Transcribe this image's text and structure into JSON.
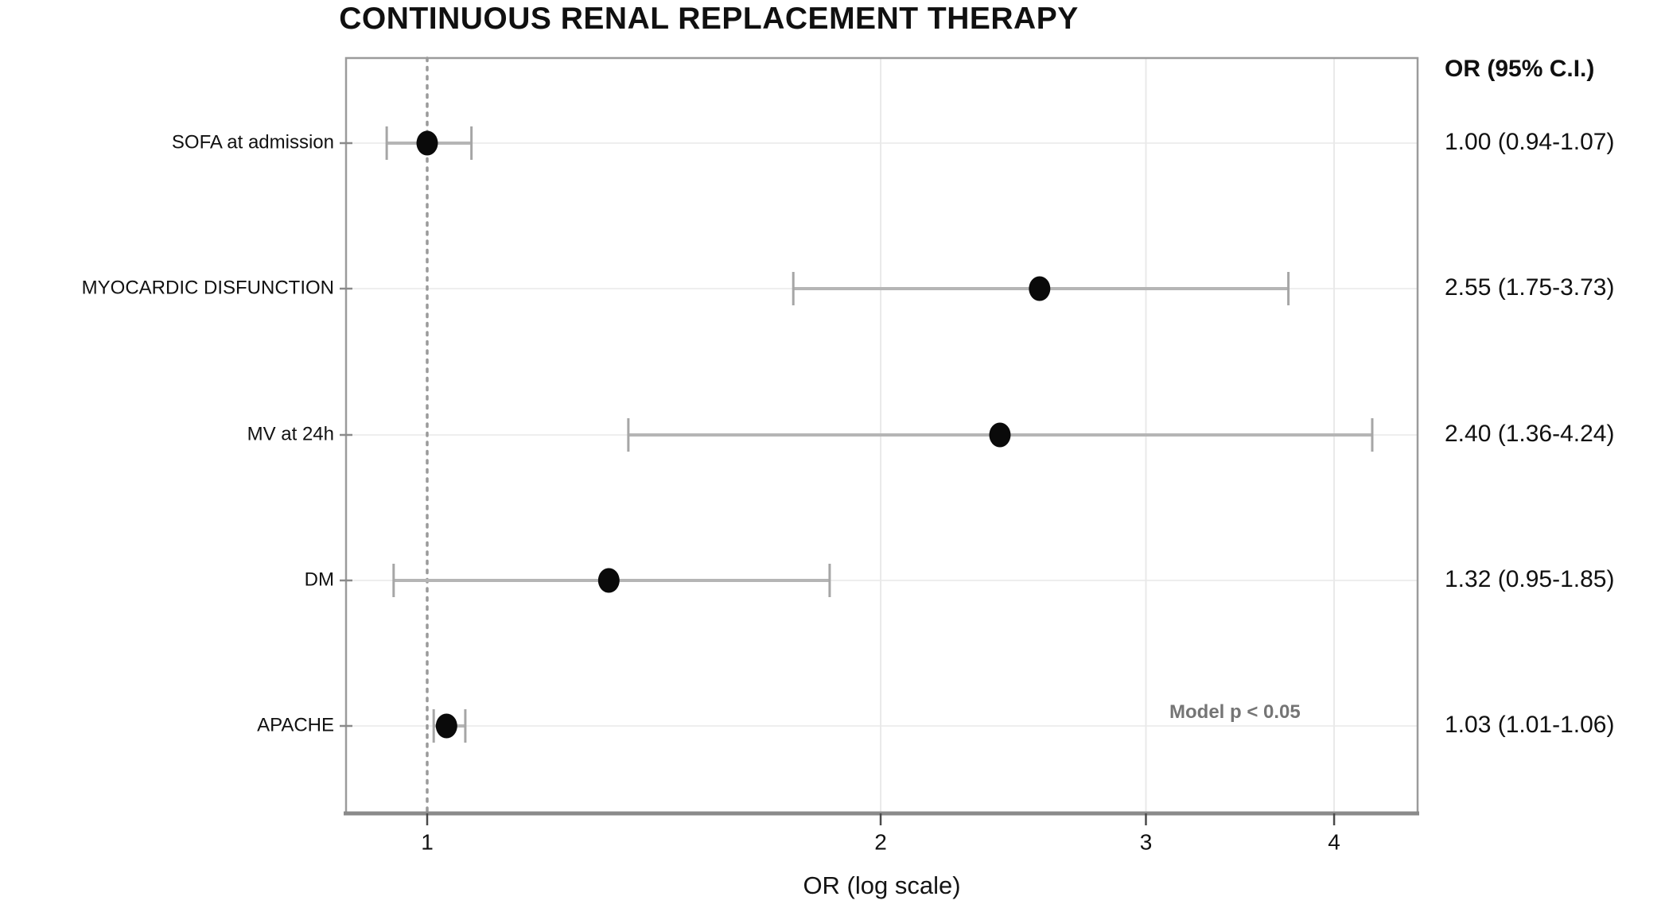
{
  "title": "CONTINUOUS RENAL REPLACEMENT THERAPY",
  "chart_data": {
    "type": "scatter",
    "subtype": "forest-plot",
    "title": "CONTINUOUS RENAL REPLACEMENT THERAPY",
    "xlabel": "OR (log scale)",
    "x_scale": "log",
    "x_ticks": [
      1,
      2,
      3,
      4
    ],
    "x_tick_labels": [
      "1",
      "2",
      "3",
      "4"
    ],
    "x_domain": [
      0.88,
      4.55
    ],
    "reference_line_x": 1,
    "grid": "on",
    "column_header": "OR (95% C.I.)",
    "annotation": "Model p < 0.05",
    "rows": [
      {
        "label": "SOFA at admission",
        "or": 1.0,
        "ci_low": 0.94,
        "ci_high": 1.07,
        "display": "1.00 (0.94-1.07)"
      },
      {
        "label": "MYOCARDIC DISFUNCTION",
        "or": 2.55,
        "ci_low": 1.75,
        "ci_high": 3.73,
        "display": "2.55 (1.75-3.73)"
      },
      {
        "label": "MV at 24h",
        "or": 2.4,
        "ci_low": 1.36,
        "ci_high": 4.24,
        "display": "2.40 (1.36-4.24)"
      },
      {
        "label": "DM",
        "or": 1.32,
        "ci_low": 0.95,
        "ci_high": 1.85,
        "display": "1.32 (0.95-1.85)"
      },
      {
        "label": "APACHE",
        "or": 1.03,
        "ci_low": 1.01,
        "ci_high": 1.06,
        "display": "1.03 (1.01-1.06)"
      }
    ],
    "colors": {
      "point": "#0a0a0a",
      "error_bar": "#b5b5b5",
      "error_cap": "#a6a6a6",
      "grid_line": "#e9e9e9",
      "row_line": "#eeeeee",
      "plot_border": "#9b9b9b",
      "axis_line": "#8a8a8a",
      "tick": "#4a4a4a",
      "text": "#111111",
      "reference_line": "#9a9a9a",
      "annotation_text": "#757575",
      "background": "#ffffff"
    }
  }
}
